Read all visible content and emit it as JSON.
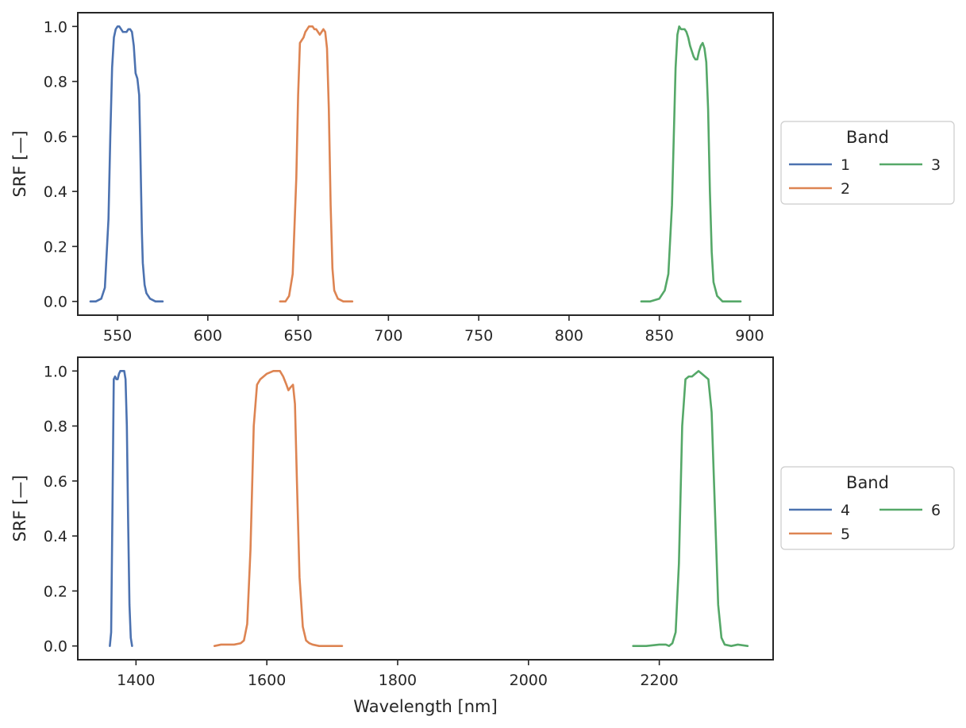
{
  "chart_data": [
    {
      "type": "line",
      "xlabel": "",
      "ylabel": "SRF [—]",
      "xlim": [
        528,
        913
      ],
      "ylim": [
        -0.05,
        1.05
      ],
      "xticks": [
        550,
        600,
        650,
        700,
        750,
        800,
        850,
        900
      ],
      "yticks": [
        0.0,
        0.2,
        0.4,
        0.6,
        0.8,
        1.0
      ],
      "grid": false,
      "legend": {
        "title": "Band",
        "placement": "outside-right",
        "columns": 2
      },
      "series": [
        {
          "name": "1",
          "color": "#4c72b0",
          "x": [
            535,
            538,
            541,
            543,
            545,
            546,
            547,
            548,
            549,
            550,
            551,
            552,
            553,
            554,
            555,
            556,
            557,
            558,
            559,
            560,
            561,
            562,
            562.5,
            563,
            563.5,
            564,
            565,
            566,
            568,
            571,
            575
          ],
          "y": [
            0.0,
            0.0,
            0.01,
            0.05,
            0.3,
            0.6,
            0.85,
            0.96,
            0.99,
            1.0,
            1.0,
            0.99,
            0.98,
            0.98,
            0.98,
            0.99,
            0.99,
            0.98,
            0.93,
            0.83,
            0.81,
            0.75,
            0.6,
            0.42,
            0.25,
            0.14,
            0.06,
            0.03,
            0.01,
            0.0,
            0.0
          ]
        },
        {
          "name": "2",
          "color": "#dd8452",
          "x": [
            640,
            643,
            645,
            647,
            649,
            650,
            651,
            652,
            653,
            654,
            655,
            656,
            657,
            658,
            659,
            660,
            661,
            662,
            663,
            664,
            665,
            666,
            667,
            668,
            669,
            670,
            672,
            675,
            680
          ],
          "y": [
            0.0,
            0.0,
            0.02,
            0.1,
            0.45,
            0.75,
            0.94,
            0.95,
            0.96,
            0.98,
            0.99,
            1.0,
            1.0,
            1.0,
            0.99,
            0.99,
            0.98,
            0.97,
            0.98,
            0.99,
            0.98,
            0.92,
            0.7,
            0.35,
            0.12,
            0.04,
            0.01,
            0.0,
            0.0
          ]
        },
        {
          "name": "3",
          "color": "#55a868",
          "x": [
            840,
            845,
            850,
            853,
            855,
            857,
            858,
            859,
            860,
            861,
            862,
            863,
            864,
            865,
            866,
            867,
            868,
            869,
            870,
            871,
            872,
            873,
            874,
            875,
            876,
            877,
            878,
            879,
            880,
            882,
            885,
            890,
            895
          ],
          "y": [
            0.0,
            0.0,
            0.01,
            0.04,
            0.1,
            0.35,
            0.6,
            0.85,
            0.97,
            1.0,
            0.99,
            0.99,
            0.99,
            0.98,
            0.96,
            0.93,
            0.91,
            0.89,
            0.88,
            0.88,
            0.91,
            0.93,
            0.94,
            0.92,
            0.87,
            0.7,
            0.4,
            0.18,
            0.07,
            0.02,
            0.0,
            0.0,
            0.0
          ]
        }
      ]
    },
    {
      "type": "line",
      "xlabel": "Wavelength [nm]",
      "ylabel": "SRF [—]",
      "xlim": [
        1311,
        2374
      ],
      "ylim": [
        -0.05,
        1.05
      ],
      "xticks": [
        1400,
        1600,
        1800,
        2000,
        2200
      ],
      "yticks": [
        0.0,
        0.2,
        0.4,
        0.6,
        0.8,
        1.0
      ],
      "grid": false,
      "legend": {
        "title": "Band",
        "placement": "outside-right",
        "columns": 2
      },
      "series": [
        {
          "name": "4",
          "color": "#4c72b0",
          "x": [
            1360,
            1362,
            1364,
            1366,
            1368,
            1370,
            1372,
            1374,
            1376,
            1378,
            1380,
            1382,
            1384,
            1386,
            1388,
            1390,
            1392,
            1394
          ],
          "y": [
            0.0,
            0.05,
            0.5,
            0.97,
            0.98,
            0.97,
            0.97,
            0.99,
            1.0,
            1.0,
            1.0,
            1.0,
            0.97,
            0.8,
            0.45,
            0.15,
            0.03,
            0.0
          ]
        },
        {
          "name": "5",
          "color": "#dd8452",
          "x": [
            1520,
            1530,
            1540,
            1550,
            1560,
            1565,
            1570,
            1575,
            1580,
            1585,
            1590,
            1600,
            1610,
            1620,
            1625,
            1630,
            1633,
            1636,
            1640,
            1643,
            1646,
            1650,
            1655,
            1660,
            1665,
            1670,
            1680,
            1700,
            1715
          ],
          "y": [
            0.0,
            0.005,
            0.005,
            0.005,
            0.01,
            0.02,
            0.08,
            0.35,
            0.8,
            0.95,
            0.97,
            0.99,
            1.0,
            1.0,
            0.98,
            0.95,
            0.93,
            0.94,
            0.95,
            0.88,
            0.6,
            0.25,
            0.07,
            0.02,
            0.01,
            0.005,
            0.0,
            0.0,
            0.0
          ]
        },
        {
          "name": "6",
          "color": "#55a868",
          "x": [
            2160,
            2180,
            2200,
            2210,
            2215,
            2220,
            2225,
            2230,
            2235,
            2240,
            2245,
            2250,
            2255,
            2260,
            2265,
            2270,
            2275,
            2280,
            2285,
            2290,
            2295,
            2300,
            2310,
            2320,
            2335
          ],
          "y": [
            0.0,
            0.0,
            0.005,
            0.005,
            0.0,
            0.01,
            0.05,
            0.3,
            0.8,
            0.97,
            0.98,
            0.98,
            0.99,
            1.0,
            0.99,
            0.98,
            0.97,
            0.85,
            0.5,
            0.15,
            0.03,
            0.005,
            0.0,
            0.005,
            0.0
          ]
        }
      ]
    }
  ]
}
